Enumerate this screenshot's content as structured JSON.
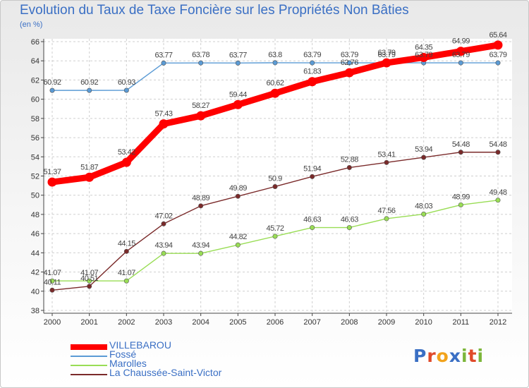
{
  "title": "Evolution du Taux de Taxe Foncière sur les Propriétés Non Bâties",
  "subtitle": "(en %)",
  "logo": {
    "text": "Proxiti",
    "letter_colors": [
      "#3a6fc4",
      "#e04a2a",
      "#f2a31b",
      "#3a6fc4",
      "#7cb63a",
      "#e04a2a",
      "#7cb63a"
    ]
  },
  "chart_data": {
    "type": "line",
    "title": "Evolution du Taux de Taxe Foncière sur les Propriétés Non Bâties",
    "ylabel": "(en %)",
    "xlabel": "",
    "x": [
      "2000",
      "2001",
      "2002",
      "2003",
      "2004",
      "2005",
      "2006",
      "2007",
      "2008",
      "2009",
      "2010",
      "2011",
      "2012"
    ],
    "ylim": [
      38,
      66
    ],
    "yticks": [
      38,
      40,
      42,
      44,
      46,
      48,
      50,
      52,
      54,
      56,
      58,
      60,
      62,
      64,
      66
    ],
    "grid": true,
    "series": [
      {
        "name": "VILLEBAROU",
        "color": "#ff0000",
        "values": [
          51.37,
          51.87,
          53.42,
          57.43,
          58.27,
          59.44,
          60.62,
          61.83,
          62.76,
          63.79,
          64.35,
          64.99,
          65.64
        ],
        "labels": [
          "51.37",
          "51.87",
          "53.42",
          "57.43",
          "58.27",
          "59.44",
          "60.62",
          "61.83",
          "62.76",
          "63.79",
          "64.35",
          "64.99",
          "65.64"
        ]
      },
      {
        "name": "Fossé",
        "color": "#5b9bd5",
        "values": [
          60.92,
          60.92,
          60.93,
          63.77,
          63.78,
          63.77,
          63.8,
          63.79,
          63.79,
          63.79,
          63.79,
          63.79,
          63.79
        ],
        "labels": [
          "60.92",
          "60.92",
          "60.93",
          "63.77",
          "63.78",
          "63.77",
          "63.8",
          "63.79",
          "63.79",
          "63.79",
          "63.79",
          "63.79",
          "63.79"
        ]
      },
      {
        "name": "Marolles",
        "color": "#99dd55",
        "values": [
          41.07,
          41.07,
          41.07,
          43.94,
          43.94,
          44.82,
          45.72,
          46.63,
          46.63,
          47.56,
          48.03,
          48.99,
          49.48
        ],
        "labels": [
          "41.07",
          "41.07",
          "41.07",
          "43.94",
          "43.94",
          "44.82",
          "45.72",
          "46.63",
          "46.63",
          "47.56",
          "48.03",
          "48.99",
          "49.48"
        ]
      },
      {
        "name": "La Chaussée-Saint-Victor",
        "color": "#7a2a2a",
        "values": [
          40.11,
          40.51,
          44.15,
          47.02,
          48.89,
          49.89,
          50.9,
          51.94,
          52.88,
          53.41,
          53.94,
          54.48,
          54.48
        ],
        "labels": [
          "40.11",
          "40.51",
          "44.15",
          "47.02",
          "48.89",
          "49.89",
          "50.9",
          "51.94",
          "52.88",
          "53.41",
          "53.94",
          "54.48",
          "54.48"
        ]
      }
    ],
    "legend": "bottom-left"
  }
}
